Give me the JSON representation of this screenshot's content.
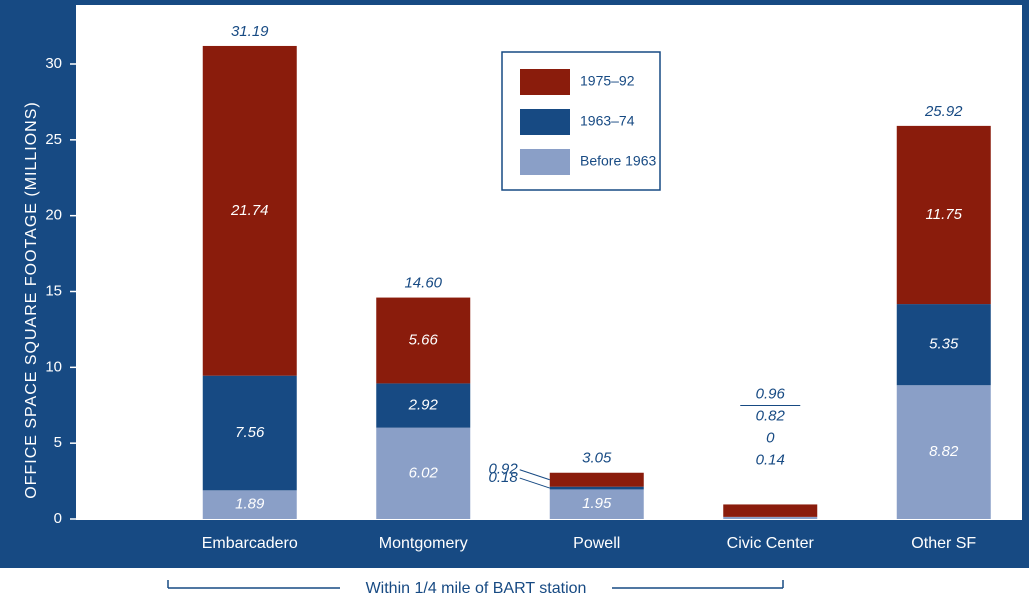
{
  "chart_data": {
    "type": "stacked_bar",
    "y_label": "OFFICE SPACE SQUARE FOOTAGE (MILLIONS)",
    "categories": [
      "Embarcadero",
      "Montgomery",
      "Powell",
      "Civic Center",
      "Other SF"
    ],
    "series": [
      {
        "name": "1975–92",
        "color": "#8a1c0c",
        "values": [
          21.74,
          5.66,
          0.92,
          0.82,
          11.75
        ]
      },
      {
        "name": "1963–74",
        "color": "#174a83",
        "values": [
          7.56,
          2.92,
          0.18,
          0,
          5.35
        ]
      },
      {
        "name": "Before 1963",
        "color": "#8a9fc7",
        "values": [
          1.89,
          6.02,
          1.95,
          0.14,
          8.82
        ]
      }
    ],
    "totals": [
      31.19,
      14.6,
      3.05,
      0.96,
      25.92
    ],
    "total_labels": [
      "31.19",
      "14.60",
      "3.05",
      "0.96",
      "25.92"
    ],
    "ylim": [
      0,
      30
    ],
    "yticks": [
      0,
      5,
      10,
      15,
      20,
      25,
      30
    ],
    "annotation": "Within 1/4 mile of BART station"
  }
}
